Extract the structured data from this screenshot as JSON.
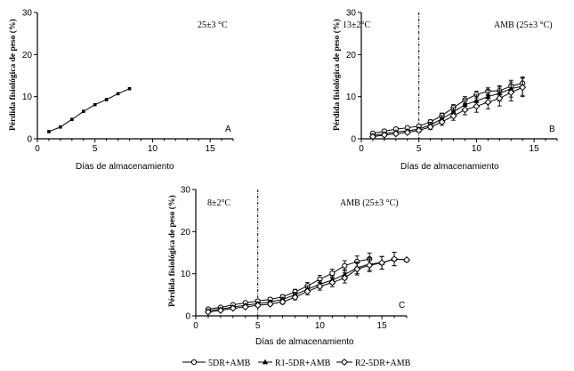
{
  "legend": {
    "items": [
      {
        "label": "5DR+AMB",
        "marker": "circle-open"
      },
      {
        "label": "R1-5DR+AMB",
        "marker": "triangle"
      },
      {
        "label": "R2-5DR+AMB",
        "marker": "diamond-open"
      }
    ]
  },
  "chart_data": [
    {
      "id": "A",
      "type": "line",
      "panel_letter": "A",
      "annotations": [
        "25±3 °C"
      ],
      "xlabel": "Días de almacenamiento",
      "ylabel": "Pérdida fisiológica de peso (%)",
      "xlim": [
        0,
        17
      ],
      "ylim": [
        0,
        30
      ],
      "xticks": [
        0,
        5,
        10,
        15
      ],
      "yticks": [
        0,
        10,
        20,
        30
      ],
      "series": [
        {
          "name": "A",
          "marker": "square",
          "x": [
            1,
            2,
            3,
            4,
            5,
            6,
            7,
            8
          ],
          "y": [
            1.7,
            2.8,
            4.6,
            6.5,
            8.1,
            9.3,
            10.7,
            11.9
          ],
          "err": [
            0,
            0,
            0,
            0,
            0,
            0,
            0,
            0
          ]
        }
      ]
    },
    {
      "id": "B",
      "type": "line",
      "panel_letter": "B",
      "annotations": [
        "13±2°C",
        "AMB (25±3 °C)"
      ],
      "vline": 5,
      "xlabel": "Días de almacenamiento",
      "ylabel": "Pérdida fisiológica de peso (%)",
      "xlim": [
        0,
        17
      ],
      "ylim": [
        0,
        30
      ],
      "xticks": [
        0,
        5,
        10,
        15
      ],
      "yticks": [
        0,
        10,
        20,
        30
      ],
      "series": [
        {
          "name": "5DR+AMB",
          "marker": "circle-open",
          "x": [
            1,
            2,
            3,
            4,
            5,
            6,
            7,
            8,
            9,
            10,
            11,
            12,
            13,
            14
          ],
          "y": [
            1.3,
            1.8,
            2.3,
            2.6,
            3.0,
            4.0,
            5.5,
            7.4,
            9.2,
            10.5,
            11.3,
            11.4,
            12.5,
            13.2
          ],
          "err": [
            0.3,
            0.3,
            0.3,
            0.3,
            0.4,
            0.5,
            0.6,
            0.7,
            0.8,
            0.8,
            0.8,
            0.9,
            1.0,
            1.2
          ]
        },
        {
          "name": "R1-5DR+AMB",
          "marker": "triangle",
          "x": [
            1,
            2,
            3,
            4,
            5,
            6,
            7,
            8,
            9,
            10,
            11,
            12,
            13,
            14
          ],
          "y": [
            0.8,
            1.2,
            1.6,
            1.9,
            2.3,
            3.3,
            4.7,
            6.4,
            8.1,
            9.0,
            10.0,
            10.8,
            11.9,
            12.5
          ],
          "err": [
            0.3,
            0.3,
            0.3,
            0.3,
            0.4,
            0.6,
            0.8,
            1.0,
            1.2,
            1.4,
            1.6,
            1.8,
            2.0,
            2.2
          ]
        },
        {
          "name": "R2-5DR+AMB",
          "marker": "diamond-open",
          "x": [
            1,
            2,
            3,
            4,
            5,
            6,
            7,
            8,
            9,
            10,
            11,
            12,
            13,
            14
          ],
          "y": [
            0.5,
            0.9,
            1.2,
            1.5,
            2.0,
            2.8,
            4.0,
            5.4,
            6.9,
            7.7,
            8.7,
            9.6,
            11.0,
            12.2
          ],
          "err": [
            0.3,
            0.3,
            0.3,
            0.3,
            0.4,
            0.6,
            0.8,
            1.0,
            1.2,
            1.4,
            1.6,
            1.8,
            2.0,
            2.2
          ]
        }
      ]
    },
    {
      "id": "C",
      "type": "line",
      "panel_letter": "C",
      "annotations": [
        "8±2°C",
        "AMB (25±3 °C)"
      ],
      "vline": 5,
      "xlabel": "Días de almacenamiento",
      "ylabel": "Pérdida fisiológica de peso (%)",
      "xlim": [
        0,
        17
      ],
      "ylim": [
        0,
        30
      ],
      "xticks": [
        0,
        5,
        10,
        15
      ],
      "yticks": [
        0,
        10,
        20,
        30
      ],
      "series": [
        {
          "name": "5DR+AMB",
          "marker": "circle-open",
          "x": [
            1,
            2,
            3,
            4,
            5,
            6,
            7,
            8,
            9,
            10,
            11,
            12,
            13,
            14
          ],
          "y": [
            1.6,
            2.0,
            2.6,
            3.1,
            3.5,
            3.9,
            4.5,
            5.7,
            7.1,
            8.7,
            10.1,
            11.9,
            12.9,
            13.5
          ],
          "err": [
            0.3,
            0.3,
            0.3,
            0.3,
            0.4,
            0.4,
            0.5,
            0.6,
            0.8,
            0.9,
            1.0,
            1.2,
            1.3,
            1.4
          ]
        },
        {
          "name": "R1-5DR+AMB",
          "marker": "triangle",
          "x": [
            1,
            2,
            3,
            4,
            5,
            6,
            7,
            8,
            9,
            10,
            11,
            12,
            13,
            14,
            15,
            16,
            17
          ],
          "y": [
            1.2,
            1.6,
            2.1,
            2.5,
            2.9,
            3.3,
            3.9,
            5.0,
            6.3,
            7.5,
            8.5,
            9.8,
            11.4,
            12.3,
            12.6,
            13.5,
            13.3
          ],
          "err": [
            0.3,
            0.3,
            0.3,
            0.3,
            0.4,
            0.4,
            0.5,
            0.6,
            0.8,
            0.9,
            1.0,
            1.2,
            1.4,
            1.5,
            1.5,
            1.6,
            0
          ]
        },
        {
          "name": "R2-5DR+AMB",
          "marker": "diamond-open",
          "x": [
            1,
            2,
            3,
            4,
            5,
            6,
            7,
            8,
            9,
            10,
            11,
            12,
            13,
            14,
            15,
            16,
            17
          ],
          "y": [
            0.9,
            1.3,
            1.8,
            2.1,
            2.5,
            2.8,
            3.3,
            4.4,
            5.8,
            7.0,
            7.9,
            9.0,
            11.1,
            12.0,
            12.6,
            13.5,
            13.3
          ],
          "err": [
            0.3,
            0.3,
            0.3,
            0.3,
            0.4,
            0.4,
            0.5,
            0.6,
            0.8,
            0.9,
            1.0,
            1.2,
            1.4,
            1.5,
            1.5,
            1.6,
            0
          ]
        }
      ]
    }
  ]
}
